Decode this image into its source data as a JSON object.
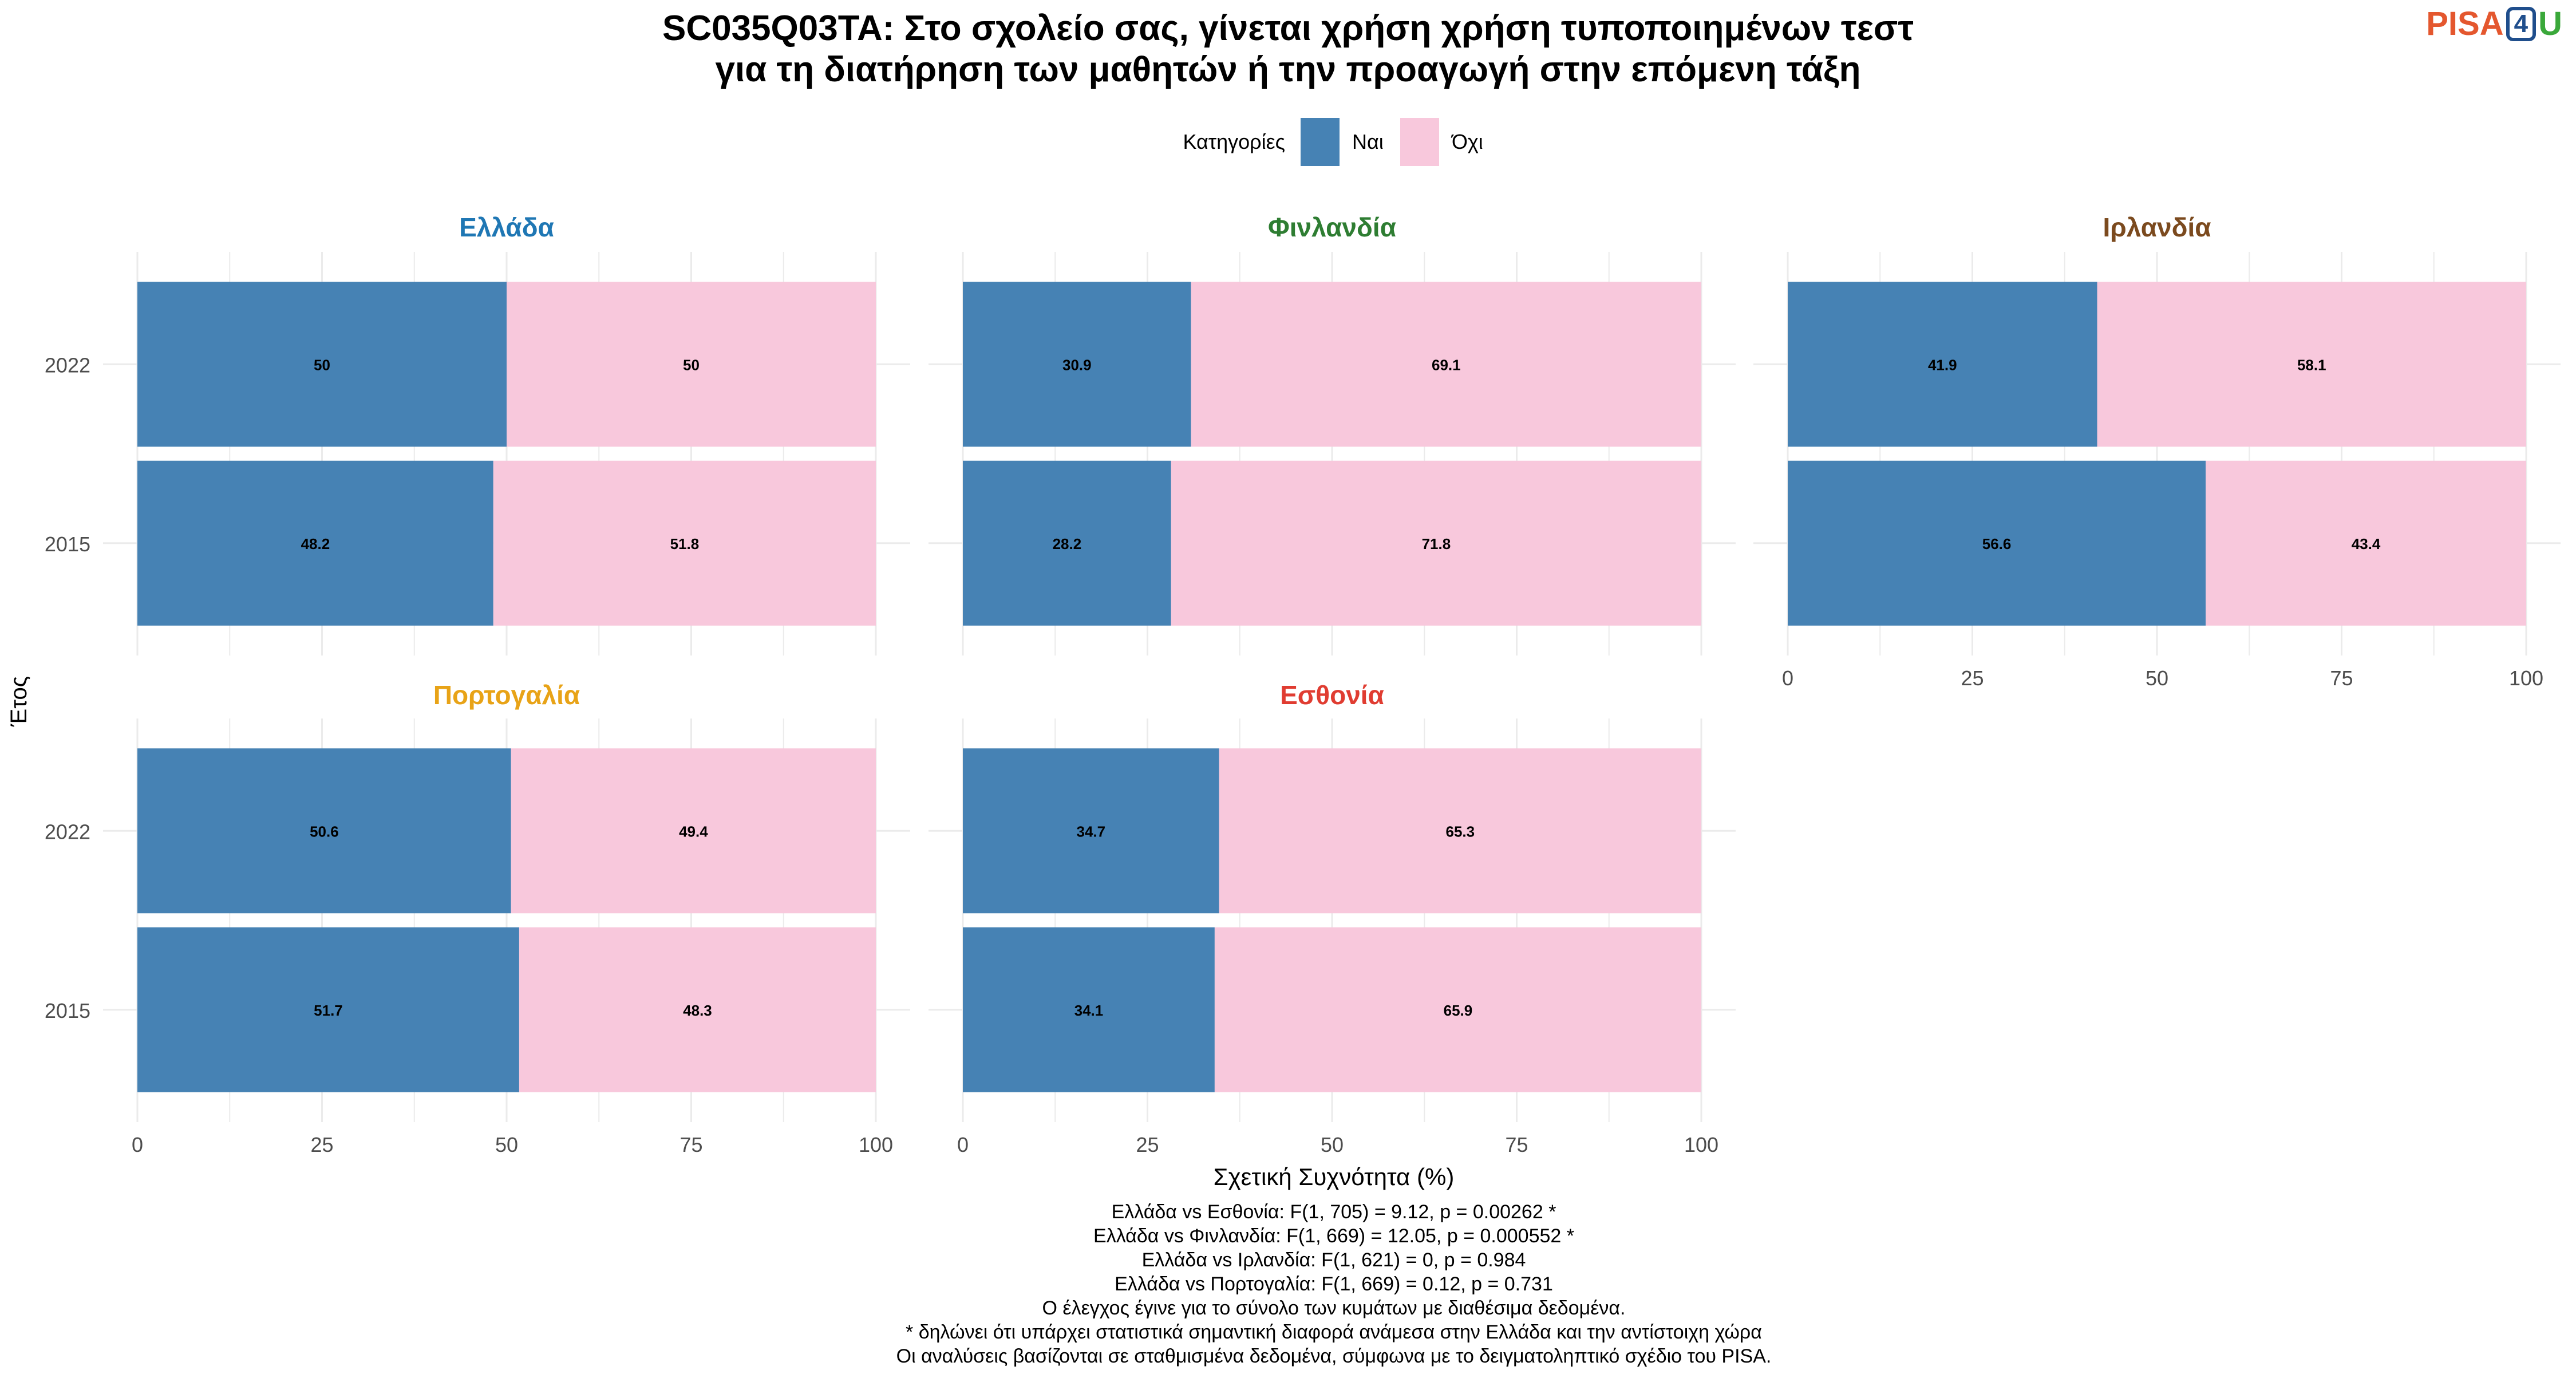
{
  "title": [
    "SC035Q03TA: Στο σχολείο σας, γίνεται χρήση χρήση τυποποιημένων τεστ",
    "για τη διατήρηση των μαθητών ή την προαγωγή στην επόμενη τάξη"
  ],
  "logo": {
    "part1": "PISA",
    "part2": "4",
    "part3": "U"
  },
  "legend": {
    "title": "Κατηγορίες",
    "items": [
      {
        "label": "Ναι",
        "color": "#4682b4"
      },
      {
        "label": "Όχι",
        "color": "#f8c8dc"
      }
    ]
  },
  "ylabel": "Έτος",
  "xlabel": "Σχετική Συχνότητα (%)",
  "footnotes": [
    "Ελλάδα vs Εσθονία: F(1, 705) = 9.12, p = 0.00262 *",
    "Ελλάδα vs Φινλανδία: F(1, 669) = 12.05, p = 0.000552 *",
    "Ελλάδα vs Ιρλανδία: F(1, 621) = 0, p = 0.984",
    "Ελλάδα vs Πορτογαλία: F(1, 669) = 0.12, p = 0.731",
    "Ο έλεγχος έγινε για το σύνολο των κυμάτων με διαθέσιμα δεδομένα.",
    "* δηλώνει ότι υπάρχει στατιστικά σημαντική διαφορά ανάμεσα στην Ελλάδα και την αντίστοιχη χώρα",
    "Οι αναλύσεις βασίζονται σε σταθμισμένα δεδομένα, σύμφωνα με το δειγματοληπτικό σχέδιο του PISA."
  ],
  "chart_data": {
    "type": "bar",
    "orientation": "horizontal",
    "stacked": true,
    "xlim": [
      0,
      100
    ],
    "xticks": [
      0,
      25,
      50,
      75,
      100
    ],
    "categories": [
      "2022",
      "2015"
    ],
    "panels": [
      {
        "name": "Ελλάδα",
        "color": "#1f77b4",
        "series": [
          {
            "name": "Ναι",
            "values": [
              50,
              48.2
            ]
          },
          {
            "name": "Όχι",
            "values": [
              50,
              51.8
            ]
          }
        ],
        "labels": [
          [
            "50",
            "50"
          ],
          [
            "48.2",
            "51.8"
          ]
        ]
      },
      {
        "name": "Φινλανδία",
        "color": "#2e7d32",
        "series": [
          {
            "name": "Ναι",
            "values": [
              30.9,
              28.2
            ]
          },
          {
            "name": "Όχι",
            "values": [
              69.1,
              71.8
            ]
          }
        ],
        "labels": [
          [
            "30.9",
            "69.1"
          ],
          [
            "28.2",
            "71.8"
          ]
        ]
      },
      {
        "name": "Ιρλανδία",
        "color": "#7b4a1e",
        "series": [
          {
            "name": "Ναι",
            "values": [
              41.9,
              56.6
            ]
          },
          {
            "name": "Όχι",
            "values": [
              58.1,
              43.4
            ]
          }
        ],
        "labels": [
          [
            "41.9",
            "58.1"
          ],
          [
            "56.6",
            "43.4"
          ]
        ]
      },
      {
        "name": "Πορτογαλία",
        "color": "#e8a317",
        "series": [
          {
            "name": "Ναι",
            "values": [
              50.6,
              51.7
            ]
          },
          {
            "name": "Όχι",
            "values": [
              49.4,
              48.3
            ]
          }
        ],
        "labels": [
          [
            "50.6",
            "49.4"
          ],
          [
            "51.7",
            "48.3"
          ]
        ]
      },
      {
        "name": "Εσθονία",
        "color": "#e03c31",
        "series": [
          {
            "name": "Ναι",
            "values": [
              34.7,
              34.1
            ]
          },
          {
            "name": "Όχι",
            "values": [
              65.3,
              65.9
            ]
          }
        ],
        "labels": [
          [
            "34.7",
            "65.3"
          ],
          [
            "34.1",
            "65.9"
          ]
        ]
      }
    ]
  }
}
